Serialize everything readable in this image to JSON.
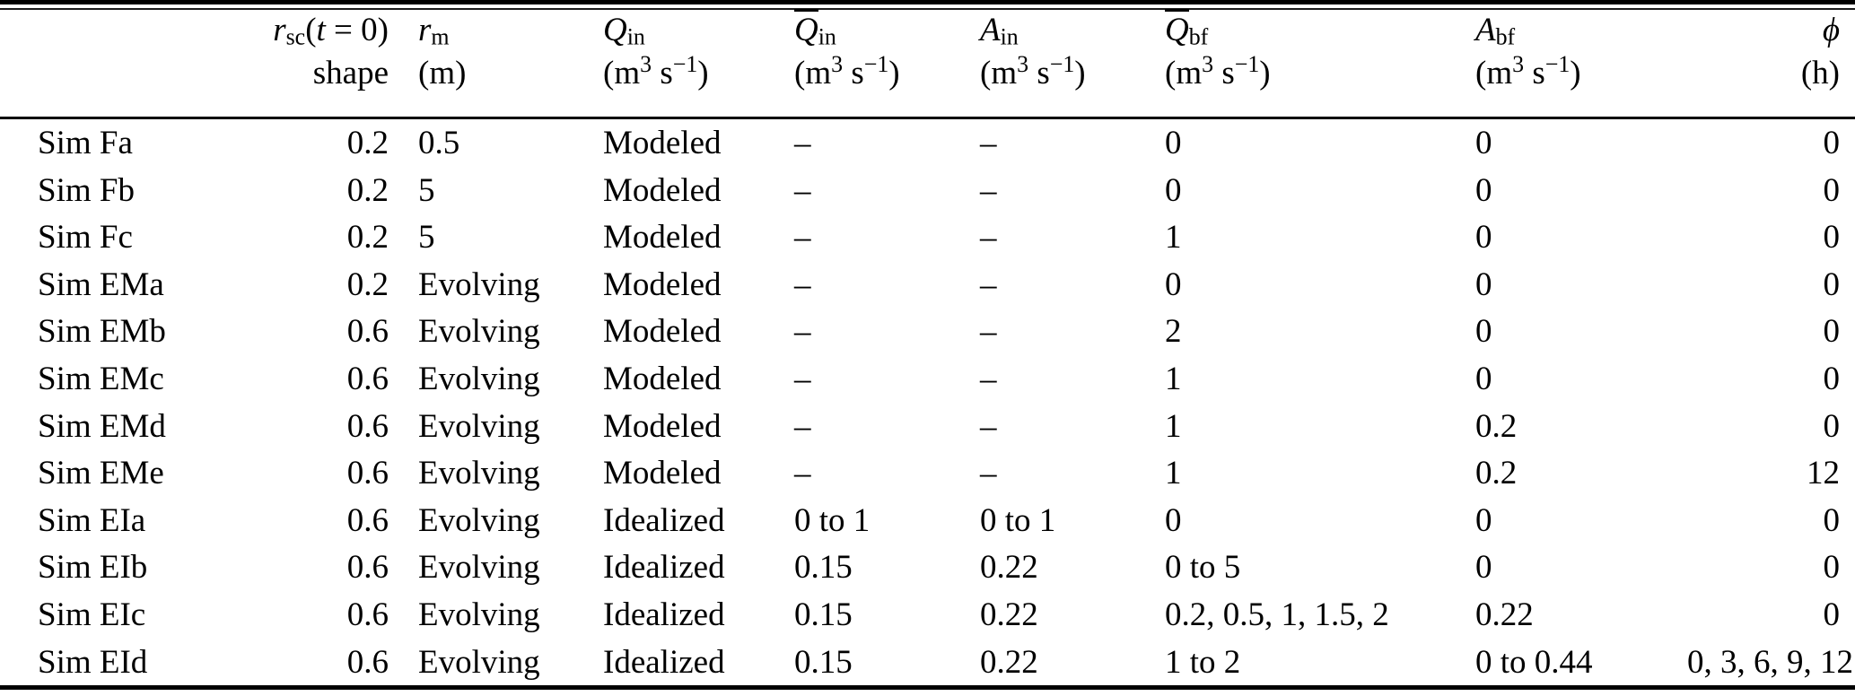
{
  "page": {
    "background": "#ffffff",
    "text_color": "#000000"
  },
  "table": {
    "header": {
      "columns": [
        {
          "id": "sim",
          "line1_html": "",
          "line2_html": ""
        },
        {
          "id": "rsc-shape",
          "line1_html": "<i>r</i><sub>sc</sub>(<i>t</i> = 0)",
          "line2_html": "shape"
        },
        {
          "id": "rm",
          "line1_html": "<i>r</i><sub>m</sub>",
          "line2_html": "(m)"
        },
        {
          "id": "q-in",
          "line1_html": "<i>Q</i><sub>in</sub>",
          "line2_html": "(m<sup>3</sup> s<sup>−1</sup>)"
        },
        {
          "id": "qbar-in",
          "line1_html": "<span class=\"ov\"><i>Q</i></span><sub>in</sub>",
          "line2_html": "(m<sup>3</sup> s<sup>−1</sup>)"
        },
        {
          "id": "a-in",
          "line1_html": "<i>A</i><sub>in</sub>",
          "line2_html": "(m<sup>3</sup> s<sup>−1</sup>)"
        },
        {
          "id": "qbar-bf",
          "line1_html": "<span class=\"ov\"><i>Q</i></span><sub>bf</sub>",
          "line2_html": "(m<sup>3</sup> s<sup>−1</sup>)"
        },
        {
          "id": "a-bf",
          "line1_html": "<i>A</i><sub>bf</sub>",
          "line2_html": "(m<sup>3</sup> s<sup>−1</sup>)"
        },
        {
          "id": "phi",
          "line1_html": "<i>ϕ</i>",
          "line2_html": "(h)"
        }
      ]
    },
    "rows": [
      {
        "label": "Sim Fa",
        "cells": [
          "0.2",
          "0.5",
          "Modeled",
          "–",
          "–",
          "0",
          "0",
          "0"
        ]
      },
      {
        "label": "Sim Fb",
        "cells": [
          "0.2",
          "5",
          "Modeled",
          "–",
          "–",
          "0",
          "0",
          "0"
        ]
      },
      {
        "label": "Sim Fc",
        "cells": [
          "0.2",
          "5",
          "Modeled",
          "–",
          "–",
          "1",
          "0",
          "0"
        ]
      },
      {
        "label": "Sim EMa",
        "cells": [
          "0.2",
          "Evolving",
          "Modeled",
          "–",
          "–",
          "0",
          "0",
          "0"
        ]
      },
      {
        "label": "Sim EMb",
        "cells": [
          "0.6",
          "Evolving",
          "Modeled",
          "–",
          "–",
          "2",
          "0",
          "0"
        ]
      },
      {
        "label": "Sim EMc",
        "cells": [
          "0.6",
          "Evolving",
          "Modeled",
          "–",
          "–",
          "1",
          "0",
          "0"
        ]
      },
      {
        "label": "Sim EMd",
        "cells": [
          "0.6",
          "Evolving",
          "Modeled",
          "–",
          "–",
          "1",
          "0.2",
          "0"
        ]
      },
      {
        "label": "Sim EMe",
        "cells": [
          "0.6",
          "Evolving",
          "Modeled",
          "–",
          "–",
          "1",
          "0.2",
          "12"
        ]
      },
      {
        "label": "Sim EIa",
        "cells": [
          "0.6",
          "Evolving",
          "Idealized",
          "0 to 1",
          "0 to 1",
          "0",
          "0",
          "0"
        ]
      },
      {
        "label": "Sim EIb",
        "cells": [
          "0.6",
          "Evolving",
          "Idealized",
          "0.15",
          "0.22",
          "0 to 5",
          "0",
          "0"
        ]
      },
      {
        "label": "Sim EIc",
        "cells": [
          "0.6",
          "Evolving",
          "Idealized",
          "0.15",
          "0.22",
          "0.2, 0.5, 1, 1.5, 2",
          "0.22",
          "0"
        ]
      },
      {
        "label": "Sim EId",
        "cells": [
          "0.6",
          "Evolving",
          "Idealized",
          "0.15",
          "0.22",
          "1 to 2",
          "0 to 0.44",
          "0, 3, 6, 9, 12"
        ]
      }
    ]
  }
}
